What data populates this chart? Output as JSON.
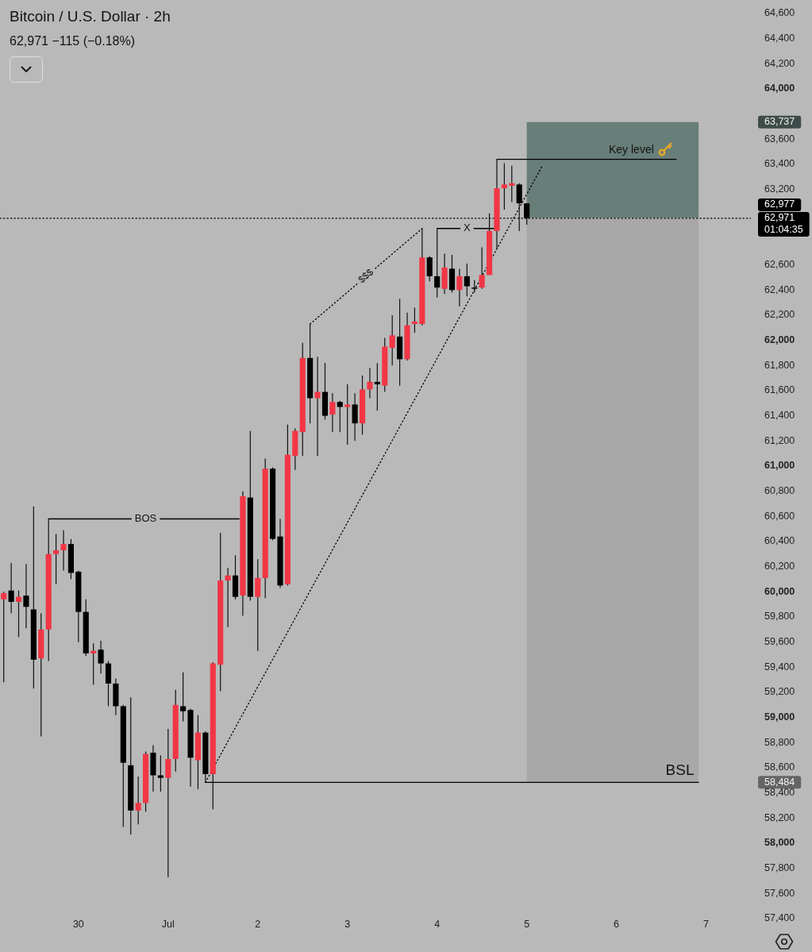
{
  "chart_data": {
    "type": "candlestick",
    "title": "Bitcoin / U.S. Dollar · 2h",
    "subtitle": "62,971 −115 (−0.18%)",
    "x": [
      "--06-29T04:00",
      "--06-29T06:00",
      "--06-29T08:00",
      "--06-29T10:00",
      "--06-29T12:00",
      "--06-29T14:00",
      "--06-29T16:00",
      "--06-29T18:00",
      "--06-29T20:00",
      "--06-29T22:00",
      "--06-30T00:00",
      "--06-30T02:00",
      "--06-30T04:00",
      "--06-30T06:00",
      "--06-30T08:00",
      "--06-30T10:00",
      "--06-30T12:00",
      "--06-30T14:00",
      "--06-30T16:00",
      "--06-30T18:00",
      "--06-30T20:00",
      "--06-30T22:00",
      "--07-01T00:00",
      "--07-01T02:00",
      "--07-01T04:00",
      "--07-01T06:00",
      "--07-01T08:00",
      "--07-01T10:00",
      "--07-01T12:00",
      "--07-01T14:00",
      "--07-01T16:00",
      "--07-01T18:00",
      "--07-01T20:00",
      "--07-01T22:00",
      "--07-02T00:00",
      "--07-02T02:00",
      "--07-02T04:00",
      "--07-02T06:00",
      "--07-02T08:00",
      "--07-02T10:00",
      "--07-02T12:00",
      "--07-02T14:00",
      "--07-02T16:00",
      "--07-02T18:00",
      "--07-02T20:00",
      "--07-02T22:00",
      "--07-03T00:00",
      "--07-03T02:00",
      "--07-03T04:00",
      "--07-03T06:00",
      "--07-03T08:00",
      "--07-03T10:00",
      "--07-03T12:00",
      "--07-03T14:00",
      "--07-03T16:00",
      "--07-03T18:00",
      "--07-03T20:00",
      "--07-03T22:00",
      "--07-04T00:00",
      "--07-04T02:00",
      "--07-04T04:00",
      "--07-04T06:00",
      "--07-04T08:00",
      "--07-04T10:00",
      "--07-04T12:00",
      "--07-04T14:00",
      "--07-04T16:00",
      "--07-04T18:00",
      "--07-04T20:00",
      "--07-04T22:00",
      "--07-05T00:00"
    ],
    "ohlc": [
      [
        59940,
        60000,
        59280,
        59990
      ],
      [
        60010,
        60230,
        59830,
        59920
      ],
      [
        59920,
        60010,
        59640,
        59960
      ],
      [
        59970,
        60220,
        59710,
        59880
      ],
      [
        59860,
        60680,
        59230,
        59460
      ],
      [
        59470,
        59830,
        58850,
        59700
      ],
      [
        59700,
        60580,
        59450,
        60300
      ],
      [
        60300,
        60460,
        60060,
        60330
      ],
      [
        60330,
        60490,
        60170,
        60380
      ],
      [
        60380,
        60420,
        60100,
        60150
      ],
      [
        60160,
        60170,
        59600,
        59840
      ],
      [
        59840,
        59940,
        59490,
        59510
      ],
      [
        59510,
        59590,
        59260,
        59530
      ],
      [
        59540,
        59610,
        59350,
        59430
      ],
      [
        59430,
        59450,
        59090,
        59270
      ],
      [
        59270,
        59310,
        59020,
        59090
      ],
      [
        59090,
        59100,
        58130,
        58640
      ],
      [
        58620,
        59160,
        58070,
        58260
      ],
      [
        58260,
        58530,
        58150,
        58320
      ],
      [
        58320,
        58730,
        58250,
        58710
      ],
      [
        58720,
        58780,
        58410,
        58540
      ],
      [
        58540,
        58700,
        58410,
        58520
      ],
      [
        58520,
        58910,
        57730,
        58670
      ],
      [
        58670,
        59220,
        58570,
        59100
      ],
      [
        59090,
        59360,
        58970,
        59050
      ],
      [
        59060,
        59070,
        58450,
        58680
      ],
      [
        58660,
        59020,
        58430,
        58880
      ],
      [
        58880,
        58890,
        58484,
        58550
      ],
      [
        58550,
        59440,
        58270,
        59430
      ],
      [
        59420,
        60470,
        59210,
        60090
      ],
      [
        60090,
        60190,
        59720,
        60130
      ],
      [
        60130,
        60290,
        59940,
        59960
      ],
      [
        59970,
        60800,
        59810,
        60760
      ],
      [
        60750,
        61280,
        59930,
        59960
      ],
      [
        59960,
        60260,
        59530,
        60110
      ],
      [
        60110,
        61060,
        59950,
        60980
      ],
      [
        60980,
        60990,
        60410,
        60420
      ],
      [
        60440,
        60580,
        60030,
        60050
      ],
      [
        60060,
        61330,
        60050,
        61090
      ],
      [
        61080,
        61300,
        60970,
        61280
      ],
      [
        61270,
        61980,
        61080,
        61860
      ],
      [
        61860,
        62130,
        61340,
        61540
      ],
      [
        61540,
        61870,
        61080,
        61590
      ],
      [
        61590,
        61820,
        61370,
        61400
      ],
      [
        61410,
        61580,
        61270,
        61510
      ],
      [
        61510,
        61520,
        61270,
        61470
      ],
      [
        61470,
        61650,
        61170,
        61490
      ],
      [
        61490,
        61580,
        61200,
        61340
      ],
      [
        61340,
        61720,
        61250,
        61610
      ],
      [
        61610,
        61780,
        61540,
        61670
      ],
      [
        61670,
        61820,
        61440,
        61650
      ],
      [
        61640,
        62020,
        61590,
        61950
      ],
      [
        61940,
        62200,
        61800,
        62040
      ],
      [
        62030,
        62330,
        61640,
        61850
      ],
      [
        61850,
        62220,
        61840,
        62120
      ],
      [
        62130,
        62260,
        62060,
        62150
      ],
      [
        62130,
        62890,
        62120,
        62660
      ],
      [
        62660,
        62670,
        62470,
        62510
      ],
      [
        62510,
        62890,
        62340,
        62420
      ],
      [
        62410,
        62690,
        62370,
        62580
      ],
      [
        62570,
        62680,
        62380,
        62400
      ],
      [
        62400,
        62570,
        62270,
        62510
      ],
      [
        62510,
        62610,
        62350,
        62430
      ],
      [
        62420,
        62480,
        62380,
        62420
      ],
      [
        62420,
        62740,
        62410,
        62520
      ],
      [
        62520,
        63010,
        62520,
        62870
      ],
      [
        62870,
        63440,
        62730,
        63210
      ],
      [
        63210,
        63410,
        63040,
        63240
      ],
      [
        63230,
        63390,
        63100,
        63250
      ],
      [
        63240,
        63250,
        62870,
        63090
      ],
      [
        63090,
        63090,
        62920,
        62971
      ]
    ],
    "colors": [
      "#f23645",
      "#000000",
      "#f23645",
      "#000000",
      "#000000",
      "#f23645",
      "#f23645",
      "#f23645",
      "#f23645",
      "#000000",
      "#000000",
      "#000000",
      "#f23645",
      "#000000",
      "#000000",
      "#000000",
      "#000000",
      "#000000",
      "#f23645",
      "#f23645",
      "#000000",
      "#000000",
      "#f23645",
      "#f23645",
      "#000000",
      "#000000",
      "#f23645",
      "#000000",
      "#f23645",
      "#f23645",
      "#f23645",
      "#000000",
      "#f23645",
      "#000000",
      "#f23645",
      "#f23645",
      "#000000",
      "#000000",
      "#f23645",
      "#f23645",
      "#f23645",
      "#000000",
      "#f23645",
      "#000000",
      "#f23645",
      "#000000",
      "#f23645",
      "#000000",
      "#f23645",
      "#f23645",
      "#000000",
      "#f23645",
      "#f23645",
      "#000000",
      "#f23645",
      "#f23645",
      "#f23645",
      "#000000",
      "#000000",
      "#f23645",
      "#000000",
      "#f23645",
      "#000000",
      "#000000",
      "#f23645",
      "#f23645",
      "#f23645",
      "#f23645",
      "#f23645",
      "#000000",
      "#000000"
    ],
    "series": [
      {
        "type": "line",
        "x": [
          "--06-29T16:00",
          "--07-01T19:00"
        ],
        "values": [
          60580,
          60580
        ],
        "color": "#000000",
        "line_style": "solid"
      },
      {
        "type": "line",
        "x": [
          "--07-02T14:00",
          "--07-03T20:00"
        ],
        "values": [
          62130,
          62890
        ],
        "color": "#000000",
        "line_style": "dotted"
      },
      {
        "type": "line",
        "x": [
          "--07-01T10:00",
          "--07-05T04:00"
        ],
        "values": [
          58484,
          63380
        ],
        "color": "#000000",
        "line_style": "dotted"
      },
      {
        "type": "line",
        "x": [
          "--07-04T00:00",
          "--07-04T15:30"
        ],
        "values": [
          62890,
          62890
        ],
        "color": "#000000",
        "line_style": "solid"
      },
      {
        "type": "line",
        "x": [
          "--07-04T16:00",
          "--07-06T16:00"
        ],
        "values": [
          63440,
          63440
        ],
        "color": "#000000",
        "line_style": "solid"
      },
      {
        "type": "line",
        "x": [
          "--07-01T10:00",
          "--07-06T22:00"
        ],
        "values": [
          58484,
          58484
        ],
        "color": "#000000",
        "line_style": "solid"
      }
    ],
    "xlim": [
      "--06-29T03:00",
      "--07-07T12:00"
    ],
    "xticks": [
      {
        "value": "--06-30",
        "label": "30"
      },
      {
        "value": "--07-01",
        "label": "Jul"
      },
      {
        "value": "--07-02",
        "label": "2"
      },
      {
        "value": "--07-03",
        "label": "3"
      },
      {
        "value": "--07-04",
        "label": "4"
      },
      {
        "value": "--07-05",
        "label": "5"
      },
      {
        "value": "--07-06",
        "label": "6"
      },
      {
        "value": "--07-07",
        "label": "7"
      }
    ],
    "ylim": [
      57400,
      64600
    ],
    "yticks": [
      {
        "value": 57400,
        "label": "57,400"
      },
      {
        "value": 57600,
        "label": "57,600"
      },
      {
        "value": 57800,
        "label": "57,800"
      },
      {
        "value": 58000,
        "label": "58,000"
      },
      {
        "value": 58200,
        "label": "58,200"
      },
      {
        "value": 58400,
        "label": "58,400"
      },
      {
        "value": 58484,
        "label": "58,484"
      },
      {
        "value": 58600,
        "label": "58,600"
      },
      {
        "value": 58800,
        "label": "58,800"
      },
      {
        "value": 59000,
        "label": "59,000"
      },
      {
        "value": 59200,
        "label": "59,200"
      },
      {
        "value": 59400,
        "label": "59,400"
      },
      {
        "value": 59600,
        "label": "59,600"
      },
      {
        "value": 59800,
        "label": "59,800"
      },
      {
        "value": 60000,
        "label": "60,000"
      },
      {
        "value": 60200,
        "label": "60,200"
      },
      {
        "value": 60400,
        "label": "60,400"
      },
      {
        "value": 60600,
        "label": "60,600"
      },
      {
        "value": 60800,
        "label": "60,800"
      },
      {
        "value": 61000,
        "label": "61,000"
      },
      {
        "value": 61200,
        "label": "61,200"
      },
      {
        "value": 61400,
        "label": "61,400"
      },
      {
        "value": 61600,
        "label": "61,600"
      },
      {
        "value": 61800,
        "label": "61,800"
      },
      {
        "value": 62000,
        "label": "62,000"
      },
      {
        "value": 62200,
        "label": "62,200"
      },
      {
        "value": 62400,
        "label": "62,400"
      },
      {
        "value": 62600,
        "label": "62,600"
      },
      {
        "value": 63200,
        "label": "63,200"
      },
      {
        "value": 63400,
        "label": "63,400"
      },
      {
        "value": 63600,
        "label": "63,600"
      },
      {
        "value": 63737,
        "label": "63,737"
      },
      {
        "value": 64000,
        "label": "64,000"
      },
      {
        "value": 64200,
        "label": "64,200"
      },
      {
        "value": 64400,
        "label": "64,400"
      },
      {
        "value": 64600,
        "label": "64,600"
      }
    ],
    "ref_lines": [
      {
        "axis": "y",
        "value": 62971,
        "label": "62,971",
        "color": "#000000",
        "line_style": "dotted"
      }
    ],
    "bands": [
      {
        "axis": "y",
        "from": 62977,
        "to": 63737,
        "color": "#687e79"
      },
      {
        "axis": "y",
        "from": 62977,
        "to": 58484,
        "color": "#a8a8a8"
      }
    ],
    "annotations": [
      {
        "text": "BOS",
        "x": "--06-30T18:00",
        "y": 60580
      },
      {
        "text": "$$$",
        "x": "--07-03T05:00",
        "y": 62510
      },
      {
        "text": "X",
        "x": "--07-04T08:00",
        "y": 62890
      },
      {
        "text": "Key level",
        "x": "--07-06T04:00",
        "y": 63440
      },
      {
        "text": "BSL",
        "x": "--07-06T17:00",
        "y": 58484
      },
      "62,977",
      "01:04:35"
    ]
  }
}
